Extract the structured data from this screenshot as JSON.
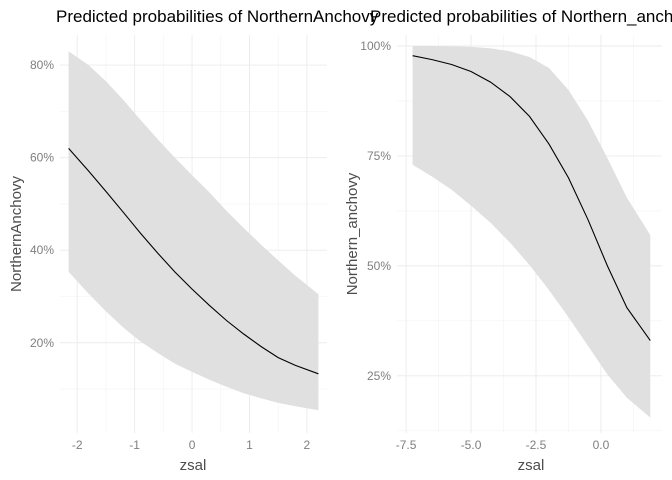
{
  "chart_data": [
    {
      "type": "line",
      "title": "Predicted probabilities of NorthernAnchovy",
      "xlabel": "zsal",
      "ylabel": "NorthernAnchovy",
      "xlim": [
        -2.3,
        2.35
      ],
      "ylim": [
        0.005,
        0.865
      ],
      "x_ticks": [
        -2,
        -1,
        0,
        1,
        2
      ],
      "x_tick_labels": [
        "-2",
        "-1",
        "0",
        "1",
        "2"
      ],
      "y_ticks": [
        0.2,
        0.4,
        0.6,
        0.8
      ],
      "y_tick_labels": [
        "20%",
        "40%",
        "60%",
        "80%"
      ],
      "grid": true,
      "series": [
        {
          "x": [
            -2.15,
            -1.8,
            -1.5,
            -1.2,
            -0.9,
            -0.6,
            -0.3,
            0,
            0.3,
            0.6,
            0.9,
            1.2,
            1.5,
            1.8,
            2.2
          ],
          "predicted": [
            0.62,
            0.571,
            0.527,
            0.482,
            0.437,
            0.394,
            0.353,
            0.316,
            0.281,
            0.248,
            0.219,
            0.192,
            0.168,
            0.151,
            0.133
          ],
          "ci_lower": [
            0.353,
            0.306,
            0.268,
            0.233,
            0.203,
            0.178,
            0.155,
            0.137,
            0.12,
            0.105,
            0.091,
            0.08,
            0.07,
            0.063,
            0.054
          ],
          "ci_upper": [
            0.83,
            0.8,
            0.765,
            0.725,
            0.682,
            0.64,
            0.6,
            0.562,
            0.525,
            0.485,
            0.448,
            0.412,
            0.378,
            0.345,
            0.305
          ]
        }
      ]
    },
    {
      "type": "line",
      "title": "Predicted probabilities of Northern_anchovy",
      "xlabel": "zsal",
      "ylabel": "Northern_anchovy",
      "xlim": [
        -7.85,
        2.35
      ],
      "ylim": [
        0.12,
        1.025
      ],
      "x_ticks": [
        -7.5,
        -5,
        -2.5,
        0
      ],
      "x_tick_labels": [
        "-7.5",
        "-5.0",
        "-2.5",
        "0.0"
      ],
      "y_ticks": [
        0.25,
        0.5,
        0.75,
        1.0
      ],
      "y_tick_labels": [
        "25%",
        "50%",
        "75%",
        "100%"
      ],
      "grid": true,
      "series": [
        {
          "x": [
            -7.25,
            -6.5,
            -5.75,
            -5,
            -4.25,
            -3.5,
            -2.75,
            -2,
            -1.25,
            -0.5,
            0.25,
            1,
            1.9
          ],
          "predicted": [
            0.978,
            0.969,
            0.958,
            0.942,
            0.918,
            0.885,
            0.84,
            0.777,
            0.7,
            0.605,
            0.5,
            0.405,
            0.33
          ],
          "ci_lower": [
            0.73,
            0.703,
            0.673,
            0.637,
            0.598,
            0.553,
            0.502,
            0.445,
            0.383,
            0.318,
            0.253,
            0.2,
            0.155
          ],
          "ci_upper": [
            1.0,
            1.0,
            0.999,
            0.998,
            0.995,
            0.988,
            0.975,
            0.95,
            0.9,
            0.83,
            0.745,
            0.655,
            0.57
          ]
        }
      ]
    }
  ]
}
